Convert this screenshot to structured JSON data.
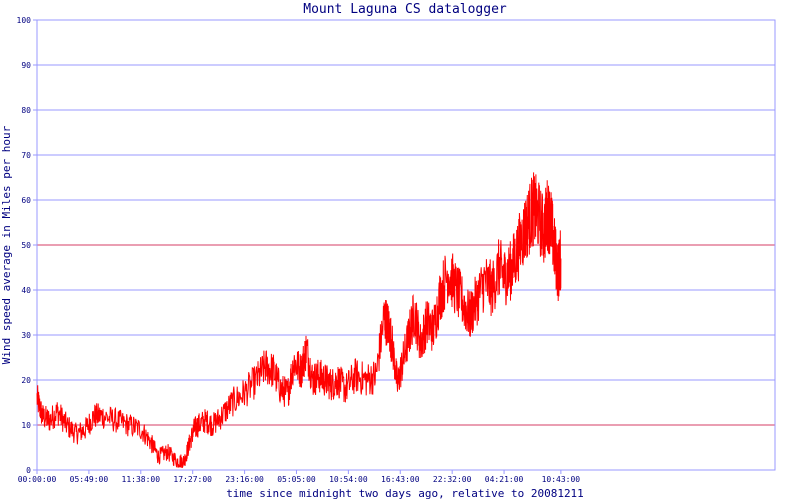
{
  "chart_data": {
    "type": "line",
    "title": "Mount Laguna CS datalogger",
    "xlabel": "time since midnight two days ago, relative to 20081211",
    "ylabel": "Wind speed average in Miles per hour",
    "ylim": [
      0,
      100
    ],
    "yticks": [
      0,
      10,
      20,
      30,
      40,
      50,
      60,
      70,
      80,
      90,
      100
    ],
    "xlim_hours": [
      0,
      82.716
    ],
    "xtick_labels": [
      "00:00:00",
      "05:49:00",
      "11:38:00",
      "17:27:00",
      "23:16:00",
      "05:05:00",
      "10:54:00",
      "16:43:00",
      "22:32:00",
      "04:21:00",
      "10:43:00"
    ],
    "xtick_hours": [
      0,
      5.817,
      11.633,
      17.45,
      23.267,
      29.083,
      34.9,
      40.717,
      46.533,
      52.35,
      58.716
    ],
    "grid": true,
    "colors": {
      "series": "#ff0000",
      "grid": "#9999ff",
      "threshold_line": "#ff0000",
      "text": "#000080"
    },
    "threshold_lines": [
      10,
      50
    ],
    "series": [
      {
        "hours": [
          0,
          0.6,
          1.4,
          2.3,
          3.3,
          4.4,
          5.4,
          6.4,
          7.4,
          8.8,
          10.3,
          11.7,
          12.8,
          13.6,
          14.6,
          15.7,
          16.5,
          17.1,
          17.6,
          18.1,
          18.9,
          19.7,
          20.7,
          21.9,
          23.2,
          24.6,
          25.6,
          26.5,
          27.3,
          28.1,
          28.8,
          29.6,
          30.2,
          30.9,
          31.6,
          32.3,
          33.0,
          33.7,
          34.6,
          35.7,
          36.9,
          38.0,
          38.9,
          39.4,
          39.8,
          40.4,
          41.0,
          41.7,
          42.3,
          43.0,
          43.7,
          44.4,
          45.2,
          46.1,
          47.0,
          47.8,
          48.5,
          49.3,
          50.2,
          51.0,
          51.8,
          52.4,
          53.0,
          53.6,
          54.4,
          55.0,
          55.6,
          56.1,
          56.8,
          57.2,
          57.6,
          58.0,
          58.4,
          58.716
        ],
        "values": [
          16,
          12,
          11,
          13,
          10,
          8,
          9,
          12,
          12,
          11,
          10,
          9,
          6,
          3,
          4,
          2,
          2,
          6,
          9,
          10,
          11,
          10,
          12,
          15,
          17,
          20,
          23,
          22,
          18,
          17,
          24,
          22,
          27,
          20,
          21,
          20,
          19,
          20,
          18,
          21,
          20,
          21,
          34,
          32,
          28,
          19,
          24,
          30,
          35,
          28,
          33,
          31,
          39,
          44,
          40,
          37,
          34,
          38,
          42,
          40,
          45,
          43,
          44,
          47,
          52,
          55,
          58,
          57,
          53,
          57,
          55,
          49,
          44,
          47
        ]
      }
    ]
  }
}
